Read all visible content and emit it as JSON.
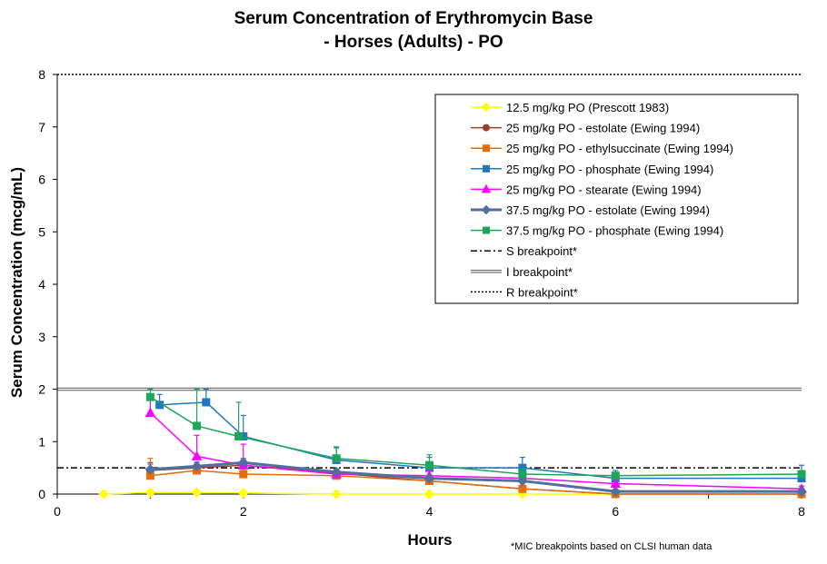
{
  "chart_data": {
    "type": "line",
    "title": [
      "Serum Concentration of Erythromycin Base",
      "- Horses (Adults) - PO"
    ],
    "xlabel": "Hours",
    "ylabel": "Serum Concentration (mcg/mL)",
    "xlim": [
      0,
      8
    ],
    "ylim": [
      0,
      8
    ],
    "x_ticks": [
      0,
      2,
      4,
      6,
      8
    ],
    "y_ticks": [
      0,
      1,
      2,
      3,
      4,
      5,
      6,
      7,
      8
    ],
    "grid": false,
    "legend_position": "top-right",
    "footnote": "*MIC breakpoints based on CLSI human data",
    "series": [
      {
        "name": "12.5 mg/kg PO (Prescott 1983)",
        "color": "#ffff00",
        "marker": "diamond",
        "line_width": 1.5,
        "points": [
          [
            0.5,
            0.0
          ],
          [
            1,
            0.03
          ],
          [
            1.5,
            0.03
          ],
          [
            2,
            0.02
          ],
          [
            3,
            0.0
          ],
          [
            4,
            0.0
          ],
          [
            5,
            0.0
          ],
          [
            6,
            0.0
          ]
        ]
      },
      {
        "name": "25 mg/kg PO - estolate (Ewing 1994)",
        "color": "#9c3f2a",
        "marker": "circle",
        "line_width": 1.5,
        "points": [
          [
            1,
            0.45
          ],
          [
            1.5,
            0.5
          ],
          [
            2,
            0.55
          ],
          [
            3,
            0.4
          ],
          [
            4,
            0.25
          ],
          [
            5,
            0.1
          ],
          [
            6,
            0.0
          ],
          [
            8,
            0.0
          ]
        ],
        "err": [
          0.15,
          0.1,
          0.1,
          0.08,
          0.05,
          0.03,
          0,
          0
        ]
      },
      {
        "name": "25 mg/kg PO - ethylsuccinate (Ewing 1994)",
        "color": "#e46c0a",
        "marker": "square",
        "line_width": 1.5,
        "points": [
          [
            1,
            0.35
          ],
          [
            1.5,
            0.45
          ],
          [
            2,
            0.38
          ],
          [
            3,
            0.35
          ],
          [
            4,
            0.25
          ],
          [
            5,
            0.1
          ],
          [
            6,
            0.0
          ],
          [
            8,
            0.0
          ]
        ],
        "err": [
          0.33,
          0.15,
          0.1,
          0.08,
          0.05,
          0.03,
          0,
          0
        ]
      },
      {
        "name": "25 mg/kg PO - phosphate (Ewing 1994)",
        "color": "#1f77c4",
        "marker": "square",
        "line_width": 1.5,
        "points": [
          [
            1.1,
            1.7
          ],
          [
            1.6,
            1.75
          ],
          [
            2,
            1.1
          ],
          [
            3,
            0.65
          ],
          [
            4,
            0.5
          ],
          [
            5,
            0.5
          ],
          [
            6,
            0.3
          ],
          [
            8,
            0.3
          ]
        ],
        "err": [
          0.2,
          0.25,
          0.4,
          0.25,
          0.2,
          0.2,
          0.15,
          0.25
        ]
      },
      {
        "name": "25 mg/kg PO - stearate (Ewing 1994)",
        "color": "#ff00ff",
        "marker": "triangle",
        "line_width": 1.5,
        "points": [
          [
            1,
            1.55
          ],
          [
            1.5,
            0.72
          ],
          [
            2,
            0.55
          ],
          [
            3,
            0.38
          ],
          [
            4,
            0.35
          ],
          [
            5,
            0.3
          ],
          [
            6,
            0.2
          ],
          [
            8,
            0.1
          ]
        ],
        "err": [
          0.35,
          0.4,
          0.4,
          0.1,
          0.1,
          0.05,
          0.05,
          0.05
        ]
      },
      {
        "name": "37.5 mg/kg PO - estolate (Ewing 1994)",
        "color": "#4f6fa0",
        "marker": "diamond",
        "line_width": 3,
        "points": [
          [
            1,
            0.47
          ],
          [
            1.5,
            0.53
          ],
          [
            2,
            0.6
          ],
          [
            3,
            0.42
          ],
          [
            4,
            0.3
          ],
          [
            5,
            0.25
          ],
          [
            6,
            0.05
          ],
          [
            8,
            0.05
          ]
        ],
        "err": [
          0.1,
          0.08,
          0.08,
          0.06,
          0.05,
          0.05,
          0.03,
          0.03
        ]
      },
      {
        "name": "37.5 mg/kg PO - phosphate (Ewing 1994)",
        "color": "#1fa55a",
        "marker": "square",
        "line_width": 1.5,
        "points": [
          [
            1,
            1.85
          ],
          [
            1.5,
            1.3
          ],
          [
            1.95,
            1.1
          ],
          [
            3,
            0.68
          ],
          [
            4,
            0.55
          ],
          [
            5,
            0.38
          ],
          [
            6,
            0.35
          ],
          [
            8,
            0.38
          ]
        ],
        "err": [
          0.15,
          0.7,
          0.65,
          0.2,
          0.2,
          0.1,
          0.05,
          0.05
        ]
      }
    ],
    "reference_lines": [
      {
        "name": "S breakpoint*",
        "value": 0.5,
        "style": "dash-dot",
        "color": "#000000"
      },
      {
        "name": "I breakpoint*",
        "value": 2,
        "style": "double",
        "color": "#555555"
      },
      {
        "name": "R breakpoint*",
        "value": 8,
        "style": "dotted",
        "color": "#000000"
      }
    ]
  }
}
